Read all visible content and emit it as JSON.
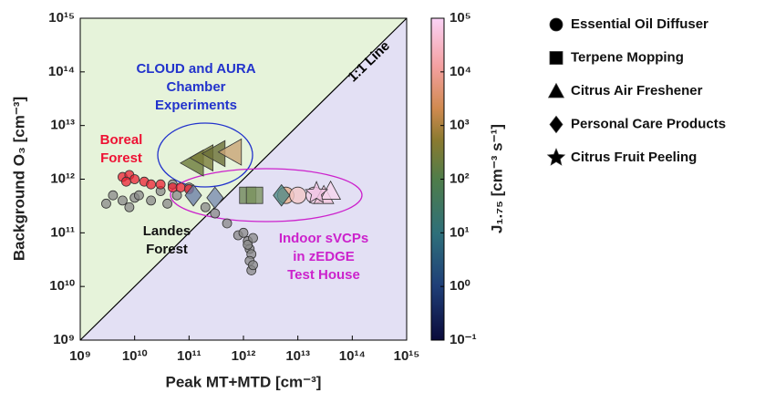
{
  "chart_data": {
    "type": "scatter",
    "xlabel": "Peak MT+MTD [cm⁻³]",
    "ylabel": "Background O₃ [cm⁻³]",
    "log_x": true,
    "log_y": true,
    "xlim": [
      1000000000.0,
      1000000000000000.0
    ],
    "ylim": [
      1000000000.0,
      1000000000000000.0
    ],
    "xticks": [
      {
        "value": 1000000000.0,
        "label": "10⁹"
      },
      {
        "value": 10000000000.0,
        "label": "10¹⁰"
      },
      {
        "value": 100000000000.0,
        "label": "10¹¹"
      },
      {
        "value": 1000000000000.0,
        "label": "10¹²"
      },
      {
        "value": 10000000000000.0,
        "label": "10¹³"
      },
      {
        "value": 100000000000000.0,
        "label": "10¹⁴"
      },
      {
        "value": 1000000000000000.0,
        "label": "10¹⁵"
      }
    ],
    "yticks": [
      {
        "value": 1000000000.0,
        "label": "10⁹"
      },
      {
        "value": 10000000000.0,
        "label": "10¹⁰"
      },
      {
        "value": 100000000000.0,
        "label": "10¹¹"
      },
      {
        "value": 1000000000000.0,
        "label": "10¹²"
      },
      {
        "value": 10000000000000.0,
        "label": "10¹³"
      },
      {
        "value": 100000000000000.0,
        "label": "10¹⁴"
      },
      {
        "value": 1000000000000000.0,
        "label": "10¹⁵"
      }
    ],
    "colorbar": {
      "label": "J₁.₇₅ [cm⁻³ s⁻¹]",
      "ylim": [
        0.1,
        100000
      ],
      "yticks": [
        {
          "value": 0.1,
          "label": "10⁻¹"
        },
        {
          "value": 1,
          "label": "10⁰"
        },
        {
          "value": 10,
          "label": "10¹"
        },
        {
          "value": 100,
          "label": "10²"
        },
        {
          "value": 1000,
          "label": "10³"
        },
        {
          "value": 10000,
          "label": "10⁴"
        },
        {
          "value": 100000,
          "label": "10⁵"
        }
      ]
    },
    "diagonal_label": "1:1 Line",
    "annotations": [
      {
        "lines": [
          "CLOUD and AURA",
          "Chamber",
          "Experiments"
        ],
        "color": "#2233cc"
      },
      {
        "lines": [
          "Boreal",
          "Forest"
        ],
        "color": "#ee1133"
      },
      {
        "lines": [
          "Landes",
          "Forest"
        ],
        "color": "#111111"
      },
      {
        "lines": [
          "Indoor sVCPs",
          "in zEDGE",
          "Test House"
        ],
        "color": "#cc22cc"
      }
    ],
    "series": [
      {
        "marker": "circle",
        "color": "#888888",
        "x": [
          3000000000.0,
          4000000000.0,
          6000000000.0,
          8000000000.0,
          10000000000.0,
          12000000000.0,
          20000000000.0,
          30000000000.0,
          40000000000.0,
          60000000000.0,
          100000000000.0,
          200000000000.0,
          300000000000.0,
          500000000000.0,
          800000000000.0,
          1000000000000.0,
          1200000000000.0,
          1300000000000.0,
          1400000000000.0,
          1300000000000.0,
          1400000000000.0,
          1500000000000.0,
          1200000000000.0,
          1500000000000.0,
          50000000000.0
        ],
        "y": [
          350000000000.0,
          500000000000.0,
          400000000000.0,
          300000000000.0,
          450000000000.0,
          500000000000.0,
          400000000000.0,
          600000000000.0,
          350000000000.0,
          500000000000.0,
          700000000000.0,
          300000000000.0,
          230000000000.0,
          150000000000.0,
          90000000000.0,
          100000000000.0,
          70000000000.0,
          50000000000.0,
          40000000000.0,
          30000000000.0,
          20000000000.0,
          25000000000.0,
          60000000000.0,
          80000000000.0,
          800000000000.0
        ]
      },
      {
        "marker": "circle",
        "color": "#ee2233",
        "x": [
          6000000000.0,
          8000000000.0,
          10000000000.0,
          15000000000.0,
          20000000000.0,
          30000000000.0,
          50000000000.0,
          70000000000.0,
          100000000000.0,
          7000000000.0
        ],
        "y": [
          1100000000000.0,
          1200000000000.0,
          1000000000000.0,
          900000000000.0,
          800000000000.0,
          800000000000.0,
          700000000000.0,
          700000000000.0,
          650000000000.0,
          900000000000.0
        ]
      },
      {
        "marker": "triangle-left",
        "colors": [
          "#6b7a3a",
          "#7a7d3a",
          "#6a6e36",
          "#c9a476"
        ],
        "x": [
          120000000000.0,
          180000000000.0,
          300000000000.0,
          600000000000.0
        ],
        "y": [
          2000000000000.0,
          2500000000000.0,
          3000000000000.0,
          3200000000000.0
        ]
      },
      {
        "name": "Essential Oil Diffuser",
        "marker": "circle",
        "colors": [
          "#e8b08c",
          "#f3c8c8",
          "#f0cfe6"
        ],
        "x": [
          6000000000000.0,
          10000000000000.0,
          20000000000000.0
        ],
        "y": [
          500000000000.0,
          500000000000.0,
          500000000000.0
        ]
      },
      {
        "name": "Terpene Mopping",
        "marker": "square",
        "colors": [
          "#6f8a56",
          "#7c9460"
        ],
        "x": [
          1200000000000.0,
          1600000000000.0
        ],
        "y": [
          500000000000.0,
          500000000000.0
        ]
      },
      {
        "name": "Citrus Air Freshener",
        "marker": "triangle",
        "colors": [
          "#f2c6dc",
          "#f6d6ee"
        ],
        "x": [
          30000000000000.0,
          40000000000000.0
        ],
        "y": [
          500000000000.0,
          600000000000.0
        ]
      },
      {
        "name": "Personal Care Products",
        "marker": "diamond",
        "colors": [
          "#6d7fa6",
          "#7b8cb0",
          "#4f8a86"
        ],
        "x": [
          120000000000.0,
          300000000000.0,
          5000000000000.0
        ],
        "y": [
          500000000000.0,
          450000000000.0,
          500000000000.0
        ]
      },
      {
        "name": "Citrus Fruit Peeling",
        "marker": "star",
        "colors": [
          "#f0c4e4"
        ],
        "x": [
          22000000000000.0
        ],
        "y": [
          550000000000.0
        ]
      }
    ]
  }
}
